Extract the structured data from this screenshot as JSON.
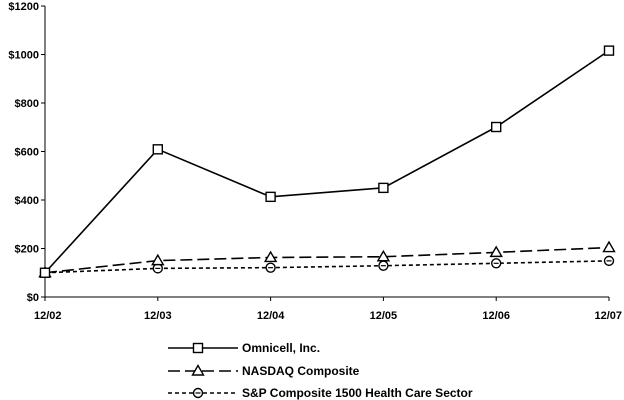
{
  "chart_data": {
    "type": "line",
    "x": [
      "12/02",
      "12/03",
      "12/04",
      "12/05",
      "12/06",
      "12/07"
    ],
    "ylim": [
      0,
      1200
    ],
    "yticks": [
      "$0",
      "$200",
      "$400",
      "$600",
      "$800",
      "$1000",
      "$1200"
    ],
    "ytick_values": [
      0,
      200,
      400,
      600,
      800,
      1000,
      1200
    ],
    "grid": false,
    "legend_position": "bottom",
    "series": [
      {
        "name": "Omnicell, Inc.",
        "values": [
          100,
          609,
          413,
          450,
          701,
          1016
        ],
        "marker": "square",
        "line_style": "solid"
      },
      {
        "name": "NASDAQ Composite",
        "values": [
          100,
          150,
          163,
          166,
          184,
          204
        ],
        "marker": "triangle",
        "line_style": "long-dash"
      },
      {
        "name": "S&P Composite 1500 Health Care Sector",
        "values": [
          100,
          118,
          121,
          129,
          139,
          149
        ],
        "marker": "circle",
        "line_style": "short-dash"
      }
    ]
  }
}
